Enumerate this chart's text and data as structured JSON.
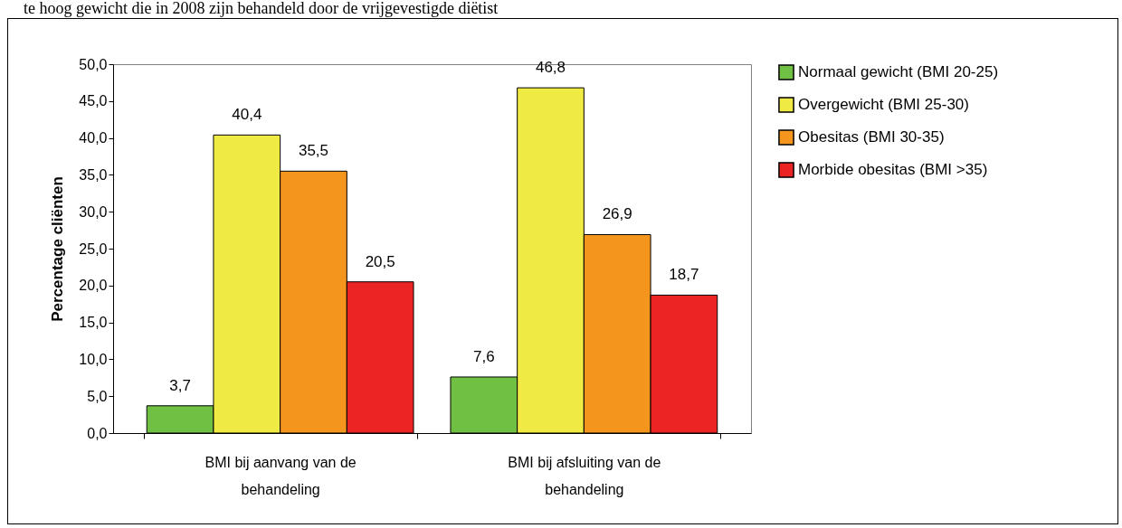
{
  "chart_data": {
    "type": "bar",
    "title": "te hoog gewicht die in 2008 zijn behandeld door de vrijgevestigde diëtist",
    "ylabel": "Percentage cliënten",
    "categories": [
      "BMI bij aanvang van de behandeling",
      "BMI bij afsluiting van de behandeling"
    ],
    "series": [
      {
        "name": "Normaal gewicht (BMI 20-25)",
        "color": "#70c044",
        "values": [
          3.7,
          7.6
        ],
        "value_labels": [
          "3,7",
          "7,6"
        ]
      },
      {
        "name": "Overgewicht (BMI 25-30)",
        "color": "#f0ea44",
        "values": [
          40.4,
          46.8
        ],
        "value_labels": [
          "40,4",
          "46,8"
        ]
      },
      {
        "name": "Obesitas (BMI 30-35)",
        "color": "#f4961e",
        "values": [
          35.5,
          26.9
        ],
        "value_labels": [
          "35,5",
          "26,9"
        ]
      },
      {
        "name": "Morbide obesitas (BMI >35)",
        "color": "#ec2424",
        "values": [
          20.5,
          18.7
        ],
        "value_labels": [
          "20,5",
          "18,7"
        ]
      }
    ],
    "ylim": [
      0,
      50
    ],
    "yticks": [
      {
        "value": 0,
        "label": "0,0"
      },
      {
        "value": 5,
        "label": "5,0"
      },
      {
        "value": 10,
        "label": "10,0"
      },
      {
        "value": 15,
        "label": "15,0"
      },
      {
        "value": 20,
        "label": "20,0"
      },
      {
        "value": 25,
        "label": "25,0"
      },
      {
        "value": 30,
        "label": "30,0"
      },
      {
        "value": 35,
        "label": "35,0"
      },
      {
        "value": 40,
        "label": "40,0"
      },
      {
        "value": 45,
        "label": "45,0"
      },
      {
        "value": 50,
        "label": "50,0"
      }
    ],
    "legend": "right"
  }
}
